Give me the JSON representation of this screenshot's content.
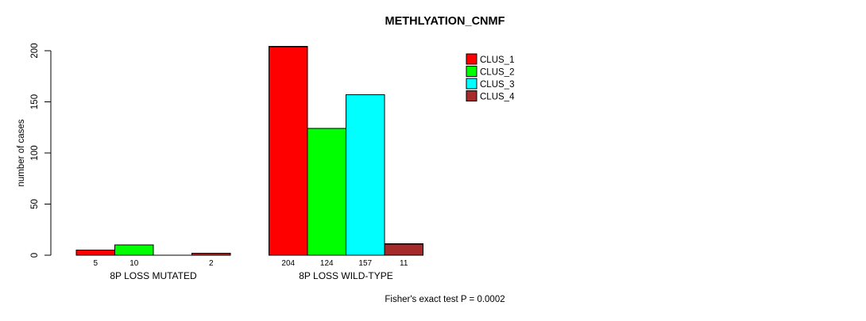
{
  "title": "METHLYATION_CNMF",
  "caption": "Fisher's exact test P = 0.0002",
  "colors": {
    "CLUS_1": "#FF0000",
    "CLUS_2": "#00FF00",
    "CLUS_3": "#00FFFF",
    "CLUS_4": "#A52A2A",
    "axis": "#000000",
    "bar_border": "#000000"
  },
  "chart_data": {
    "type": "bar",
    "title": "METHLYATION_CNMF",
    "ylabel": "number of cases",
    "xlabel": "",
    "ylim": [
      0,
      200
    ],
    "yticks": [
      0,
      50,
      100,
      150,
      200
    ],
    "categories": [
      "8P LOSS MUTATED",
      "8P LOSS WILD-TYPE"
    ],
    "series": [
      {
        "name": "CLUS_1",
        "color": "#FF0000",
        "values": [
          5,
          204
        ]
      },
      {
        "name": "CLUS_2",
        "color": "#00FF00",
        "values": [
          10,
          124
        ]
      },
      {
        "name": "CLUS_3",
        "color": "#00FFFF",
        "values": [
          0,
          157
        ]
      },
      {
        "name": "CLUS_4",
        "color": "#A52A2A",
        "values": [
          2,
          11
        ]
      }
    ],
    "bar_value_labels": [
      [
        "5",
        "10",
        "",
        "2"
      ],
      [
        "204",
        "124",
        "157",
        "11"
      ]
    ],
    "legend_position": "top-right",
    "grid": false,
    "annotation": "Fisher's exact test P = 0.0002"
  }
}
